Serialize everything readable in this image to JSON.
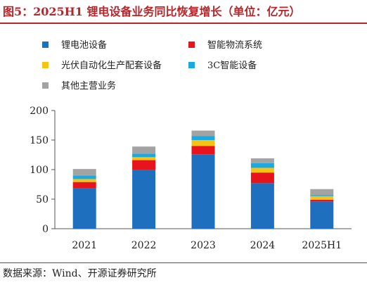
{
  "title": "图5：2025H1 锂电设备业务同比恢复增长（单位：亿元）",
  "source": "数据来源：Wind、开源证券研究所",
  "colors": {
    "title": "#b6252a",
    "series": [
      "#1f6fbf",
      "#e8141b",
      "#f5c316",
      "#1aa9e0",
      "#a3a3a3"
    ],
    "axis": "#555555",
    "text": "#222222"
  },
  "chart_data": {
    "type": "bar",
    "stacked": true,
    "categories": [
      "2021",
      "2022",
      "2023",
      "2024",
      "2025H1"
    ],
    "series": [
      {
        "name": "锂电池设备",
        "values": [
          69,
          99,
          126,
          77,
          46
        ]
      },
      {
        "name": "智能物流系统",
        "values": [
          10,
          17,
          14,
          18,
          3
        ]
      },
      {
        "name": "光伏自动化生产配套设备",
        "values": [
          5,
          5,
          10,
          8,
          6
        ]
      },
      {
        "name": "3C智能设备",
        "values": [
          6,
          6,
          7,
          8,
          2
        ]
      },
      {
        "name": "其他主营业务",
        "values": [
          11,
          12,
          9,
          8,
          10
        ]
      }
    ],
    "yticks": [
      0,
      50,
      100,
      150,
      200
    ],
    "ylim": [
      0,
      200
    ],
    "grid": false,
    "legend_position": "top"
  }
}
